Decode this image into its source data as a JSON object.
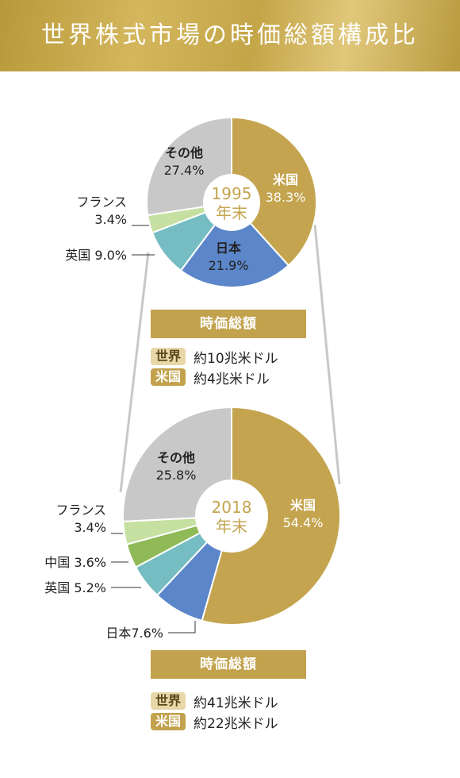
{
  "title": "世界株式市場の時価総額構成比",
  "colors": {
    "us": "#c4a44f",
    "japan": "#5b86c9",
    "uk": "#75bdc2",
    "china": "#8fba57",
    "france": "#c6e0a1",
    "other": "#c8c8c8",
    "center_text": "#c4a44f"
  },
  "chart_data": [
    {
      "type": "pie",
      "center_label": [
        "1995",
        "年末"
      ],
      "slices": [
        {
          "key": "us",
          "label": "米国",
          "value": 38.3,
          "display": "38.3%"
        },
        {
          "key": "japan",
          "label": "日本",
          "value": 21.9,
          "display": "21.9%"
        },
        {
          "key": "uk",
          "label": "英国",
          "value": 9.0,
          "display": "9.0%"
        },
        {
          "key": "france",
          "label": "フランス",
          "value": 3.4,
          "display": "3.4%"
        },
        {
          "key": "other",
          "label": "その他",
          "value": 27.4,
          "display": "27.4%"
        }
      ],
      "summary": {
        "heading": "時価総額",
        "rows": [
          {
            "tag": "世界",
            "value": "約10兆米ドル"
          },
          {
            "tag": "米国",
            "value": "約4兆米ドル"
          }
        ]
      }
    },
    {
      "type": "pie",
      "center_label": [
        "2018",
        "年末"
      ],
      "slices": [
        {
          "key": "us",
          "label": "米国",
          "value": 54.4,
          "display": "54.4%"
        },
        {
          "key": "japan",
          "label": "日本",
          "value": 7.6,
          "display": "7.6%"
        },
        {
          "key": "uk",
          "label": "英国",
          "value": 5.2,
          "display": "5.2%"
        },
        {
          "key": "china",
          "label": "中国",
          "value": 3.6,
          "display": "3.6%"
        },
        {
          "key": "france",
          "label": "フランス",
          "value": 3.4,
          "display": "3.4%"
        },
        {
          "key": "other",
          "label": "その他",
          "value": 25.8,
          "display": "25.8%"
        }
      ],
      "summary": {
        "heading": "時価総額",
        "rows": [
          {
            "tag": "世界",
            "value": "約41兆米ドル"
          },
          {
            "tag": "米国",
            "value": "約22兆米ドル"
          }
        ]
      }
    }
  ]
}
